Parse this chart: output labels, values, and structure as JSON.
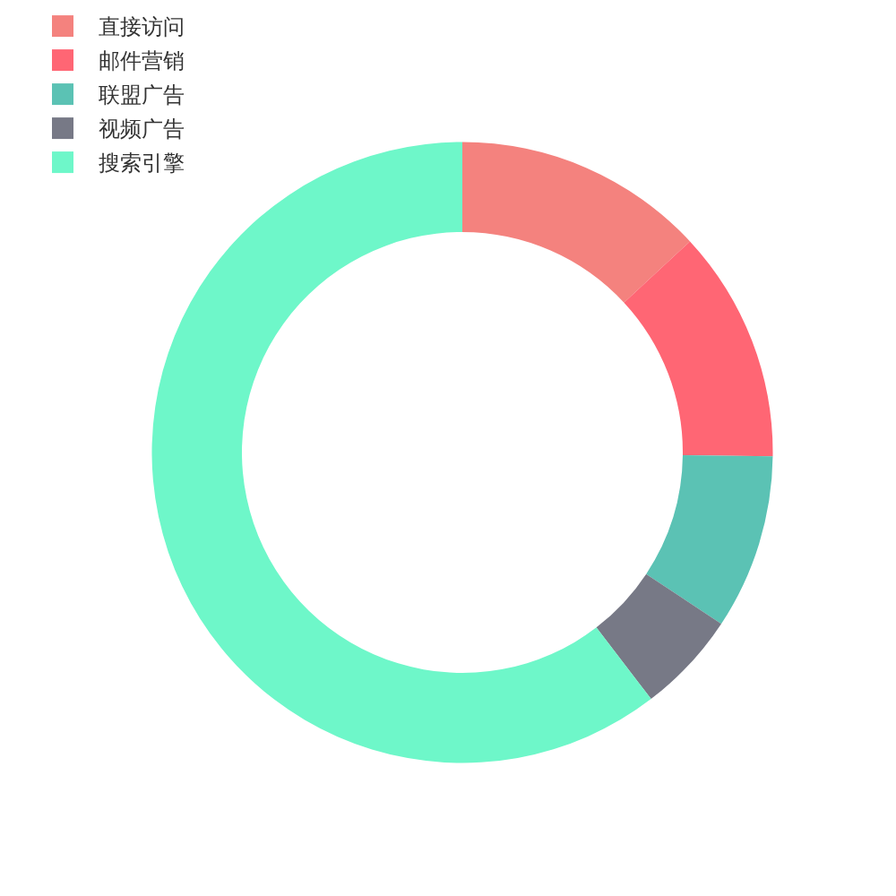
{
  "chart_data": {
    "type": "donut",
    "categories": [
      "直接访问",
      "邮件营销",
      "联盟广告",
      "视频广告",
      "搜索引擎"
    ],
    "values": [
      13.1,
      12.1,
      9.1,
      5.3,
      60.4
    ],
    "colors": [
      "#f4827e",
      "#ff6674",
      "#5bc2b4",
      "#777986",
      "#6ef7c9"
    ],
    "legend": "top left"
  }
}
